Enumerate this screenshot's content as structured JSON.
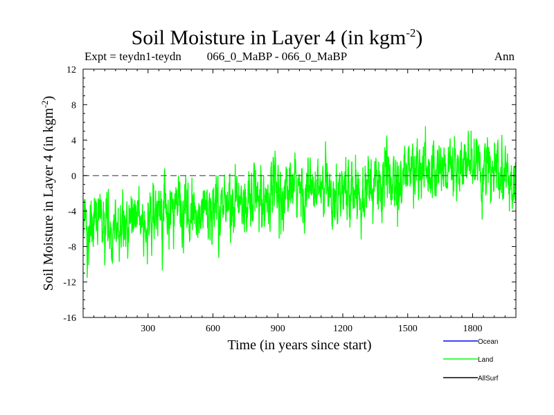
{
  "header": {
    "title": "Soil Moisture in Layer 4 (in kgm",
    "title_sup": "-2",
    "title_end": ")",
    "expt": "Expt = teydn1-teydn",
    "comparison": "066_0_MaBP - 066_0_MaBP",
    "season": "Ann"
  },
  "chart_data": {
    "type": "line",
    "title": "Soil Moisture in Layer 4 (in kgm-2)",
    "xlabel": "Time (in years since start)",
    "ylabel_main": "Soil Moisture in Layer 4 (in kgm",
    "ylabel_sup": "-2",
    "ylabel_end": ")",
    "xlim": [
      0,
      2000
    ],
    "ylim": [
      -16,
      12
    ],
    "x_ticks": [
      300,
      600,
      900,
      1200,
      1500,
      1800
    ],
    "y_ticks": [
      12,
      8,
      4,
      0,
      -4,
      -8,
      -12,
      -16
    ],
    "reference_line": {
      "y": 0,
      "style": "dashed"
    },
    "series": [
      {
        "name": "Ocean",
        "color": "#0000ff",
        "values": []
      },
      {
        "name": "Land",
        "color": "#00ff00",
        "note": "noisy annual series, ~2000 years",
        "x": [
          0,
          150,
          300,
          450,
          600,
          750,
          900,
          1050,
          1200,
          1350,
          1500,
          1650,
          1800,
          1950,
          2000
        ],
        "trend": [
          -5.5,
          -6.0,
          -5.0,
          -4.0,
          -4.0,
          -2.5,
          -2.0,
          -1.8,
          -1.8,
          -1.2,
          0.5,
          0.8,
          1.0,
          -0.5,
          -1.0
        ]
      },
      {
        "name": "AllSurf",
        "color": "#000000",
        "values": []
      }
    ],
    "legend": [
      {
        "name": "Ocean",
        "color": "#0000ff"
      },
      {
        "name": "Land",
        "color": "#00ff00"
      },
      {
        "name": "AllSurf",
        "color": "#000000"
      }
    ],
    "legend_position": "bottom-right"
  }
}
